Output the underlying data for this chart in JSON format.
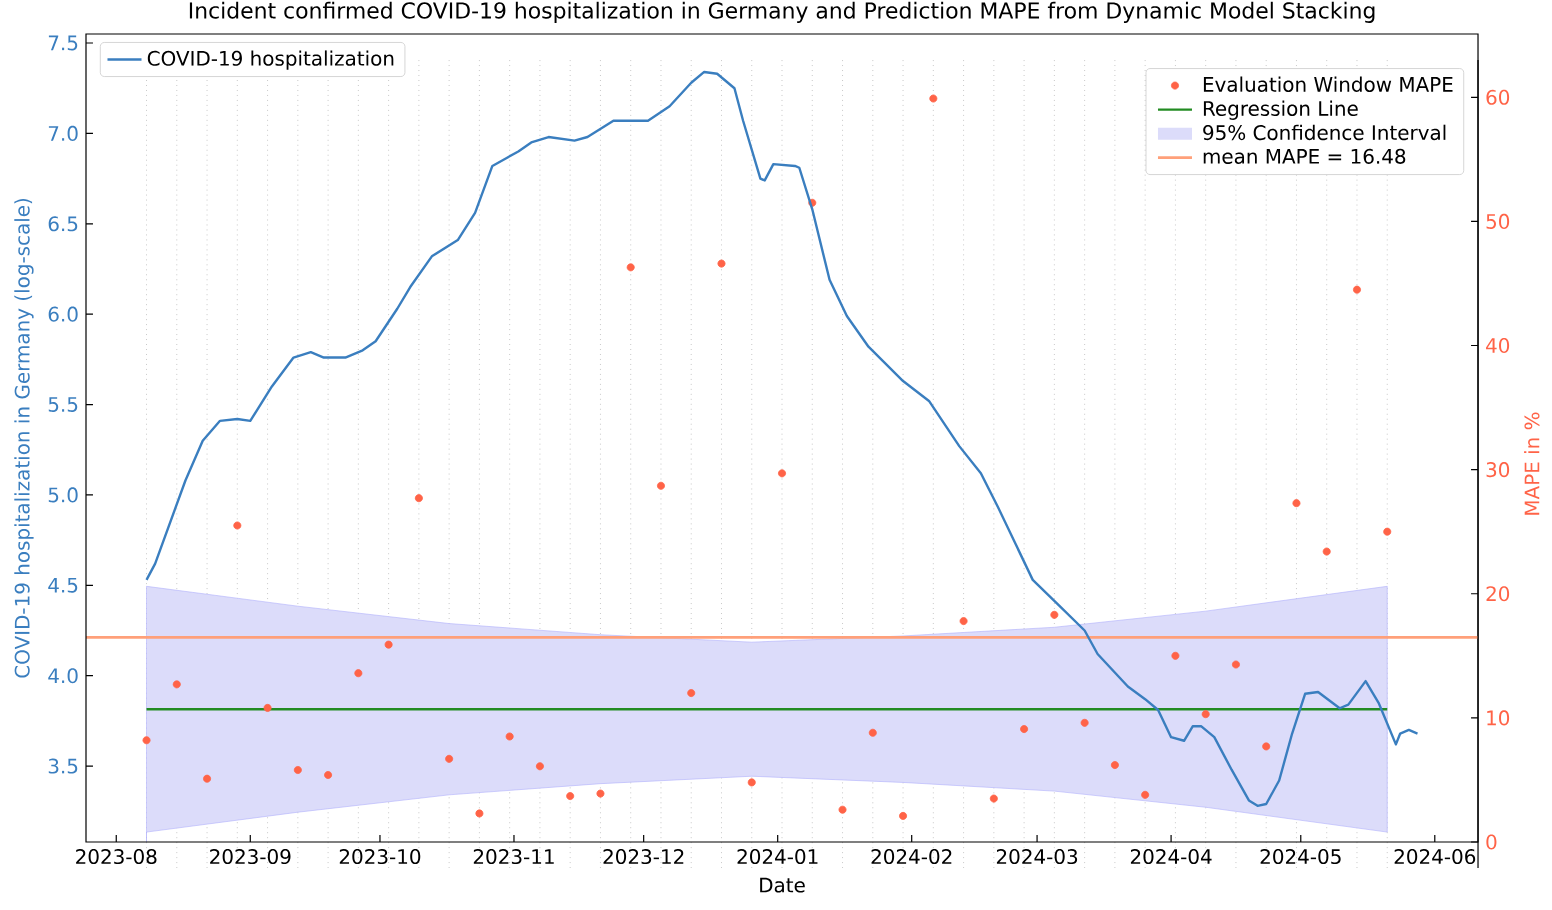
{
  "chart_data": {
    "type": "line",
    "title": "Incident confirmed COVID-19 hospitalization in Germany and Prediction MAPE from Dynamic Model Stacking",
    "xlabel": "Date",
    "ylabel": "COVID-19 hospitalization in Germany  (log-scale)",
    "y2label": "MAPE in %",
    "xlim": [
      "2023-07-25",
      "2024-06-11"
    ],
    "xticks": [
      "2023-08",
      "2023-09",
      "2023-10",
      "2023-11",
      "2023-12",
      "2024-01",
      "2024-02",
      "2024-03",
      "2024-04",
      "2024-05",
      "2024-06"
    ],
    "ylim": [
      3.08,
      7.55
    ],
    "yticks": [
      {
        "value": 3.5,
        "label": "3.5"
      },
      {
        "value": 4,
        "label": "4.0"
      },
      {
        "value": 4.5,
        "label": "4.5"
      },
      {
        "value": 5,
        "label": "5.0"
      },
      {
        "value": 5.5,
        "label": "5.5"
      },
      {
        "value": 6,
        "label": "6.0"
      },
      {
        "value": 6.5,
        "label": "6.5"
      },
      {
        "value": 7,
        "label": "7.0"
      },
      {
        "value": 7.5,
        "label": "7.5"
      }
    ],
    "y2lim": [
      -2.1,
      63.0
    ],
    "y2ticks": [
      0,
      10,
      20,
      30,
      40,
      50,
      60
    ],
    "legend": "top right",
    "series": [
      {
        "name": "COVID-19 hospitalization",
        "axis": "y",
        "color": "#3a7ebf",
        "x": [
          "2023-08-08",
          "2023-08-10",
          "2023-08-17",
          "2023-08-21",
          "2023-08-25",
          "2023-08-29",
          "2023-09-01",
          "2023-09-06",
          "2023-09-11",
          "2023-09-15",
          "2023-09-18",
          "2023-09-23",
          "2023-09-27",
          "2023-09-30",
          "2023-10-05",
          "2023-10-08",
          "2023-10-13",
          "2023-10-19",
          "2023-10-23",
          "2023-10-27",
          "2023-10-30",
          "2023-11-02",
          "2023-11-05",
          "2023-11-09",
          "2023-11-15",
          "2023-11-18",
          "2023-11-24",
          "2023-12-02",
          "2023-12-07",
          "2023-12-12",
          "2023-12-15",
          "2023-12-18",
          "2023-12-22",
          "2023-12-24",
          "2023-12-28",
          "2023-12-29",
          "2023-12-31",
          "2024-01-05",
          "2024-01-06",
          "2024-01-09",
          "2024-01-13",
          "2024-01-17",
          "2024-01-22",
          "2024-01-30",
          "2024-02-05",
          "2024-02-12",
          "2024-02-17",
          "2024-02-21",
          "2024-02-29",
          "2024-03-06",
          "2024-03-12",
          "2024-03-15",
          "2024-03-22",
          "2024-03-26",
          "2024-03-29",
          "2024-04-01",
          "2024-04-04",
          "2024-04-06",
          "2024-04-08",
          "2024-04-11",
          "2024-04-15",
          "2024-04-19",
          "2024-04-21",
          "2024-04-23",
          "2024-04-26",
          "2024-04-29",
          "2024-05-02",
          "2024-05-05",
          "2024-05-10",
          "2024-05-12",
          "2024-05-16",
          "2024-05-19",
          "2024-05-23",
          "2024-05-24",
          "2024-05-26",
          "2024-05-28"
        ],
        "values": [
          4.53,
          4.62,
          5.08,
          5.3,
          5.41,
          5.42,
          5.41,
          5.6,
          5.76,
          5.79,
          5.76,
          5.76,
          5.8,
          5.85,
          6.03,
          6.15,
          6.32,
          6.41,
          6.56,
          6.82,
          6.86,
          6.9,
          6.95,
          6.98,
          6.96,
          6.98,
          7.07,
          7.07,
          7.15,
          7.28,
          7.34,
          7.33,
          7.25,
          7.07,
          6.75,
          6.74,
          6.83,
          6.82,
          6.81,
          6.58,
          6.19,
          5.99,
          5.82,
          5.63,
          5.52,
          5.27,
          5.12,
          4.93,
          4.53,
          4.39,
          4.25,
          4.12,
          3.94,
          3.87,
          3.81,
          3.66,
          3.64,
          3.72,
          3.72,
          3.66,
          3.48,
          3.31,
          3.28,
          3.29,
          3.42,
          3.68,
          3.9,
          3.91,
          3.82,
          3.84,
          3.97,
          3.85,
          3.62,
          3.68,
          3.7,
          3.68
        ]
      },
      {
        "name": "Evaluation Window MAPE",
        "type": "scatter",
        "axis": "y2",
        "color": "#ff6347",
        "x": [
          "2023-08-08",
          "2023-08-15",
          "2023-08-22",
          "2023-08-29",
          "2023-09-05",
          "2023-09-12",
          "2023-09-19",
          "2023-09-26",
          "2023-10-03",
          "2023-10-10",
          "2023-10-17",
          "2023-10-24",
          "2023-10-31",
          "2023-11-07",
          "2023-11-14",
          "2023-11-21",
          "2023-11-28",
          "2023-12-05",
          "2023-12-12",
          "2023-12-19",
          "2023-12-26",
          "2024-01-02",
          "2024-01-09",
          "2024-01-16",
          "2024-01-23",
          "2024-01-30",
          "2024-02-06",
          "2024-02-13",
          "2024-02-20",
          "2024-02-27",
          "2024-03-05",
          "2024-03-12",
          "2024-03-19",
          "2024-03-26",
          "2024-04-02",
          "2024-04-09",
          "2024-04-16",
          "2024-04-23",
          "2024-04-30",
          "2024-05-07",
          "2024-05-14",
          "2024-05-21"
        ],
        "values": [
          8.2,
          12.7,
          5.1,
          25.5,
          10.8,
          5.8,
          5.4,
          13.6,
          15.9,
          27.7,
          6.7,
          2.3,
          8.5,
          6.1,
          3.7,
          3.9,
          46.3,
          28.7,
          12.0,
          46.6,
          4.8,
          29.7,
          51.5,
          2.6,
          8.8,
          2.1,
          59.9,
          17.8,
          3.5,
          9.1,
          18.3,
          9.6,
          6.2,
          3.8,
          15.0,
          10.3,
          14.3,
          7.7,
          27.3,
          23.4,
          44.5,
          25.0
        ]
      },
      {
        "name": "Regression Line",
        "axis": "y2",
        "color": "#228b22",
        "x": [
          "2023-08-08",
          "2023-09-12",
          "2023-10-17",
          "2023-11-21",
          "2023-12-26",
          "2024-01-30",
          "2024-03-05",
          "2024-04-09",
          "2024-05-21"
        ],
        "values": [
          10.7,
          10.7,
          10.7,
          10.7,
          10.7,
          10.7,
          10.7,
          10.7,
          10.7
        ],
        "lower": [
          0.8,
          2.4,
          3.8,
          4.7,
          5.3,
          4.8,
          4.1,
          2.8,
          0.8
        ],
        "upper": [
          20.6,
          19.0,
          17.6,
          16.7,
          16.1,
          16.6,
          17.3,
          18.6,
          20.6
        ]
      }
    ],
    "annotations": [
      "95% Confidence Interval"
    ],
    "ref_lines": [
      {
        "axis": "y2",
        "value": 16.48,
        "label": "mean MAPE = 16.48",
        "color": "#ffa07a",
        "line_style": "solid"
      },
      {
        "axis": "x",
        "value": "2023-08-08",
        "color": "#c8c8c8",
        "line_style": "dotted"
      },
      {
        "axis": "x",
        "value": "2023-08-15",
        "color": "#c8c8c8",
        "line_style": "dotted"
      },
      {
        "axis": "x",
        "value": "2023-08-22",
        "color": "#c8c8c8",
        "line_style": "dotted"
      },
      {
        "axis": "x",
        "value": "2023-08-29",
        "color": "#c8c8c8",
        "line_style": "dotted"
      },
      {
        "axis": "x",
        "value": "2023-09-05",
        "color": "#c8c8c8",
        "line_style": "dotted"
      },
      {
        "axis": "x",
        "value": "2023-09-12",
        "color": "#c8c8c8",
        "line_style": "dotted"
      },
      {
        "axis": "x",
        "value": "2023-09-19",
        "color": "#c8c8c8",
        "line_style": "dotted"
      },
      {
        "axis": "x",
        "value": "2023-09-26",
        "color": "#c8c8c8",
        "line_style": "dotted"
      },
      {
        "axis": "x",
        "value": "2023-10-03",
        "color": "#c8c8c8",
        "line_style": "dotted"
      },
      {
        "axis": "x",
        "value": "2023-10-10",
        "color": "#c8c8c8",
        "line_style": "dotted"
      },
      {
        "axis": "x",
        "value": "2023-10-17",
        "color": "#c8c8c8",
        "line_style": "dotted"
      },
      {
        "axis": "x",
        "value": "2023-10-24",
        "color": "#c8c8c8",
        "line_style": "dotted"
      },
      {
        "axis": "x",
        "value": "2023-10-31",
        "color": "#c8c8c8",
        "line_style": "dotted"
      },
      {
        "axis": "x",
        "value": "2023-11-07",
        "color": "#c8c8c8",
        "line_style": "dotted"
      },
      {
        "axis": "x",
        "value": "2023-11-14",
        "color": "#c8c8c8",
        "line_style": "dotted"
      },
      {
        "axis": "x",
        "value": "2023-11-21",
        "color": "#c8c8c8",
        "line_style": "dotted"
      },
      {
        "axis": "x",
        "value": "2023-11-28",
        "color": "#c8c8c8",
        "line_style": "dotted"
      },
      {
        "axis": "x",
        "value": "2023-12-05",
        "color": "#c8c8c8",
        "line_style": "dotted"
      },
      {
        "axis": "x",
        "value": "2023-12-12",
        "color": "#c8c8c8",
        "line_style": "dotted"
      },
      {
        "axis": "x",
        "value": "2023-12-19",
        "color": "#c8c8c8",
        "line_style": "dotted"
      },
      {
        "axis": "x",
        "value": "2023-12-26",
        "color": "#c8c8c8",
        "line_style": "dotted"
      },
      {
        "axis": "x",
        "value": "2024-01-02",
        "color": "#c8c8c8",
        "line_style": "dotted"
      },
      {
        "axis": "x",
        "value": "2024-01-09",
        "color": "#c8c8c8",
        "line_style": "dotted"
      },
      {
        "axis": "x",
        "value": "2024-01-16",
        "color": "#c8c8c8",
        "line_style": "dotted"
      },
      {
        "axis": "x",
        "value": "2024-01-23",
        "color": "#c8c8c8",
        "line_style": "dotted"
      },
      {
        "axis": "x",
        "value": "2024-01-30",
        "color": "#c8c8c8",
        "line_style": "dotted"
      },
      {
        "axis": "x",
        "value": "2024-02-06",
        "color": "#c8c8c8",
        "line_style": "dotted"
      },
      {
        "axis": "x",
        "value": "2024-02-13",
        "color": "#c8c8c8",
        "line_style": "dotted"
      },
      {
        "axis": "x",
        "value": "2024-02-20",
        "color": "#c8c8c8",
        "line_style": "dotted"
      },
      {
        "axis": "x",
        "value": "2024-02-27",
        "color": "#c8c8c8",
        "line_style": "dotted"
      },
      {
        "axis": "x",
        "value": "2024-03-05",
        "color": "#c8c8c8",
        "line_style": "dotted"
      },
      {
        "axis": "x",
        "value": "2024-03-12",
        "color": "#c8c8c8",
        "line_style": "dotted"
      },
      {
        "axis": "x",
        "value": "2024-03-19",
        "color": "#c8c8c8",
        "line_style": "dotted"
      },
      {
        "axis": "x",
        "value": "2024-03-26",
        "color": "#c8c8c8",
        "line_style": "dotted"
      },
      {
        "axis": "x",
        "value": "2024-04-02",
        "color": "#c8c8c8",
        "line_style": "dotted"
      },
      {
        "axis": "x",
        "value": "2024-04-09",
        "color": "#c8c8c8",
        "line_style": "dotted"
      },
      {
        "axis": "x",
        "value": "2024-04-16",
        "color": "#c8c8c8",
        "line_style": "dotted"
      },
      {
        "axis": "x",
        "value": "2024-04-23",
        "color": "#c8c8c8",
        "line_style": "dotted"
      },
      {
        "axis": "x",
        "value": "2024-04-30",
        "color": "#c8c8c8",
        "line_style": "dotted"
      },
      {
        "axis": "x",
        "value": "2024-05-07",
        "color": "#c8c8c8",
        "line_style": "dotted"
      },
      {
        "axis": "x",
        "value": "2024-05-14",
        "color": "#c8c8c8",
        "line_style": "dotted"
      },
      {
        "axis": "x",
        "value": "2024-05-21",
        "color": "#c8c8c8",
        "line_style": "dotted"
      }
    ]
  }
}
